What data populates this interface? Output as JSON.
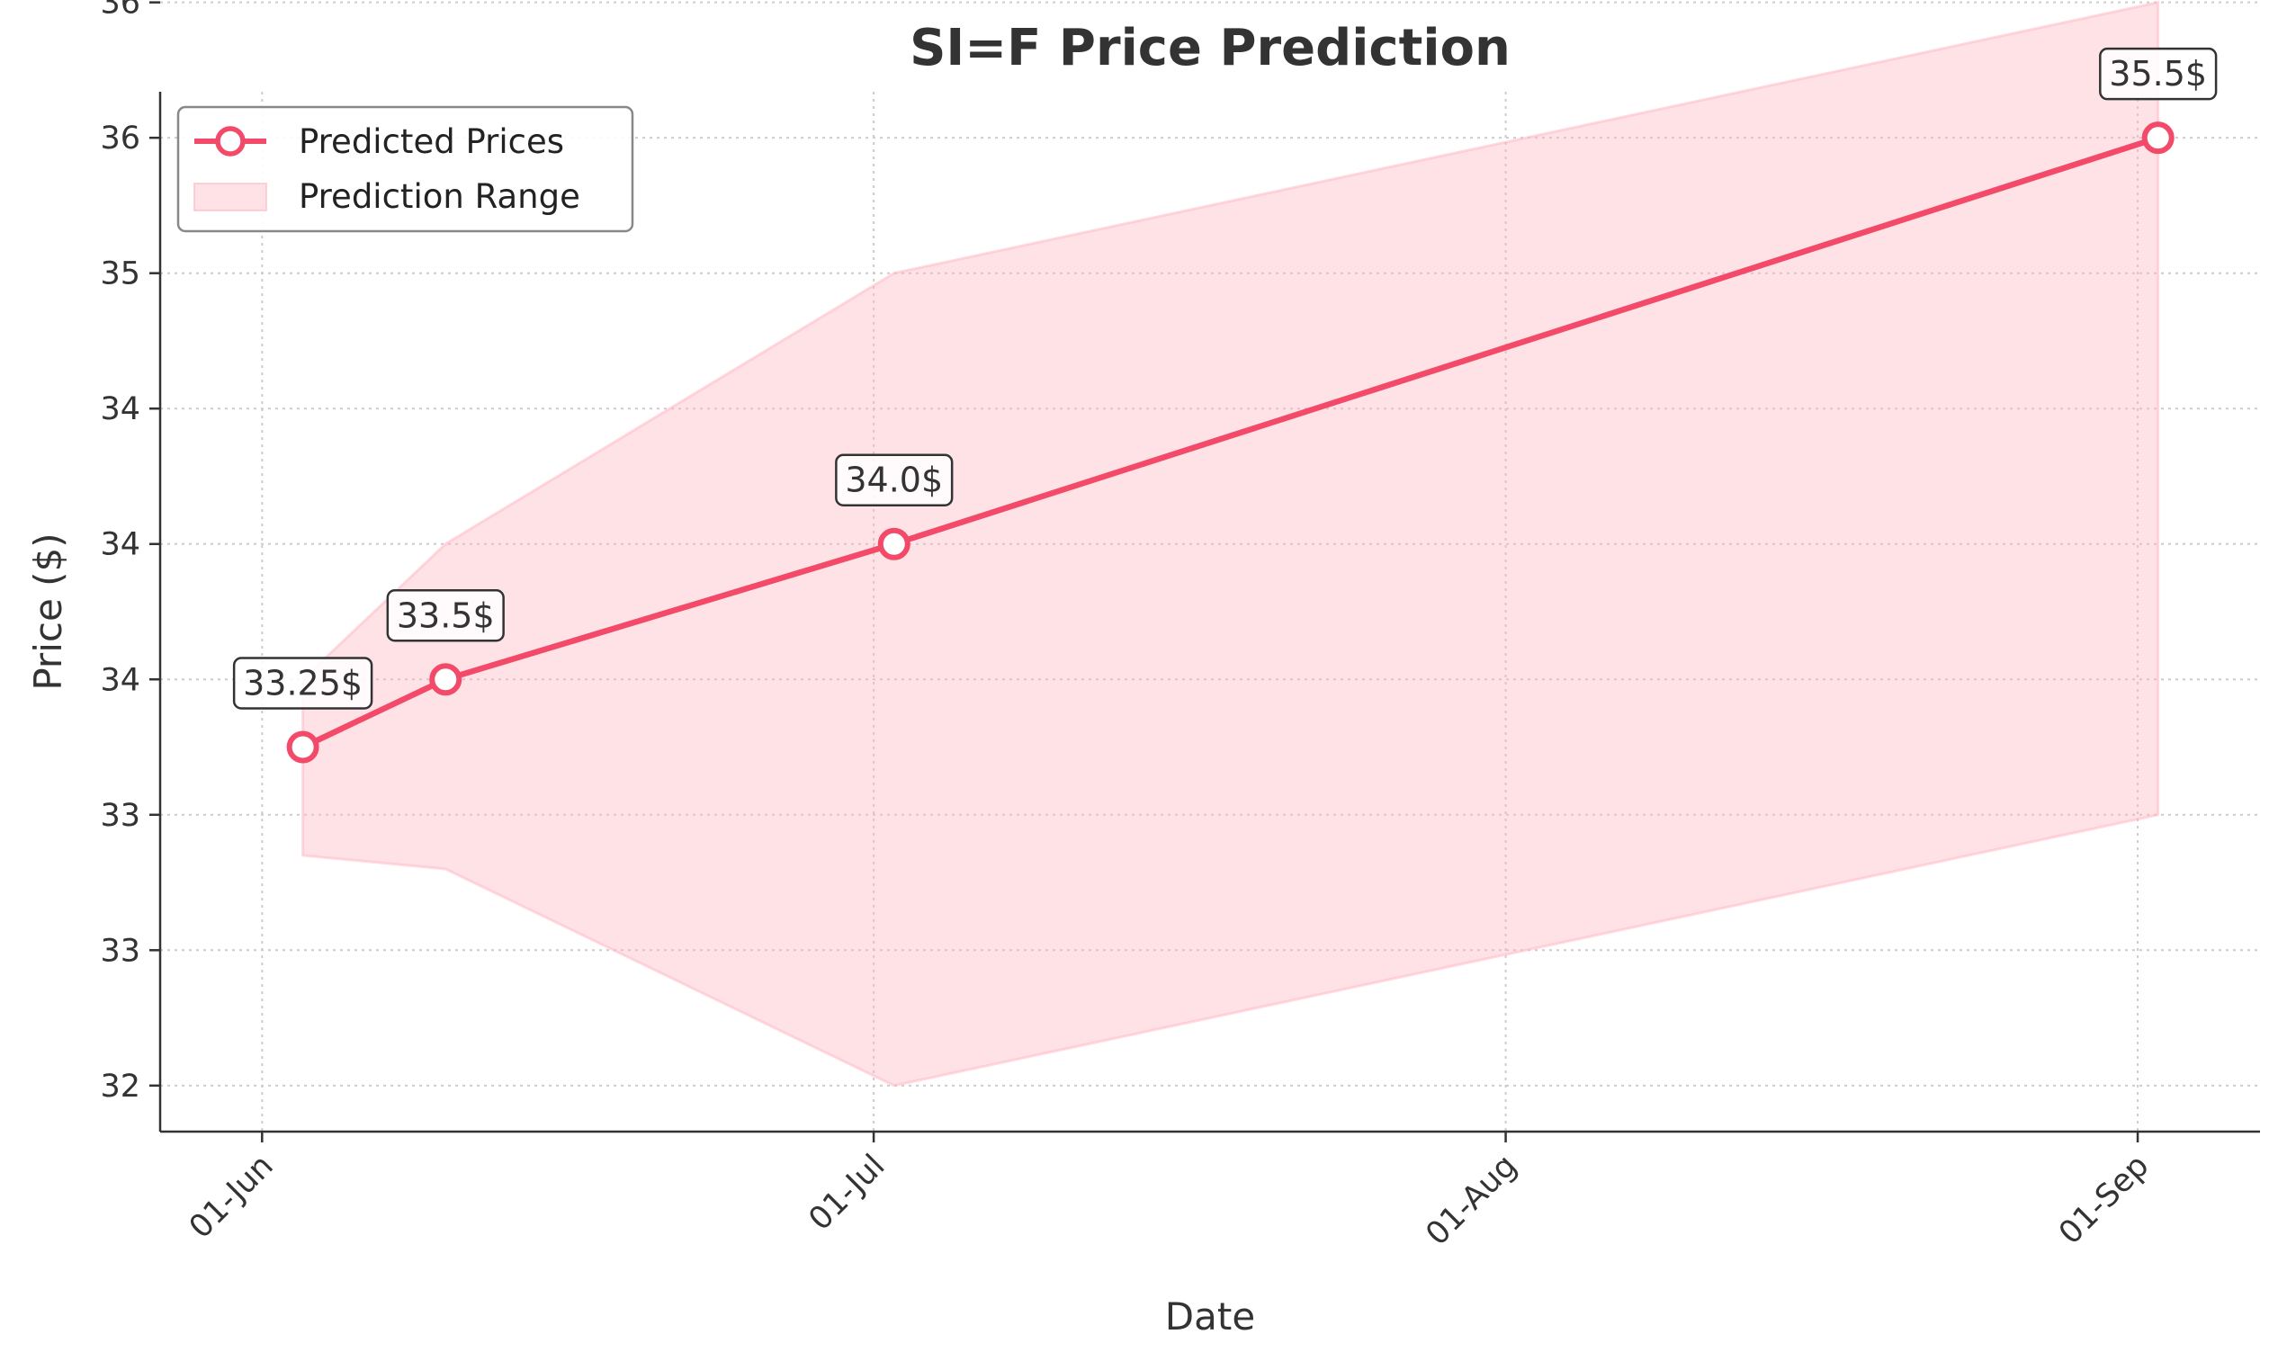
{
  "chart_data": {
    "type": "line",
    "title": "SI=F Price Prediction",
    "xlabel": "Date",
    "ylabel": "Price ($)",
    "x_ticks": [
      {
        "date": "2025-06-01",
        "label": "01-Jun"
      },
      {
        "date": "2025-07-01",
        "label": "01-Jul"
      },
      {
        "date": "2025-08-01",
        "label": "01-Aug"
      },
      {
        "date": "2025-09-01",
        "label": "01-Sep"
      }
    ],
    "y_ticks": [
      {
        "value": 32.0,
        "label": "32"
      },
      {
        "value": 32.5,
        "label": "33"
      },
      {
        "value": 33.0,
        "label": "33"
      },
      {
        "value": 33.5,
        "label": "34"
      },
      {
        "value": 34.0,
        "label": "34"
      },
      {
        "value": 34.5,
        "label": "34"
      },
      {
        "value": 35.0,
        "label": "35"
      },
      {
        "value": 35.5,
        "label": "36"
      },
      {
        "value": 36.0,
        "label": "36"
      }
    ],
    "xlim": [
      "2025-05-27",
      "2025-09-07"
    ],
    "ylim": [
      31.83,
      35.67
    ],
    "grid": true,
    "legend_position": "top-left",
    "series": [
      {
        "name": "Predicted Prices",
        "color": "#f24a68",
        "marker": "hollow-circle",
        "points": [
          {
            "x": "2025-06-03",
            "y": 33.25,
            "label": "33.25$"
          },
          {
            "x": "2025-06-10",
            "y": 33.5,
            "label": "33.5$"
          },
          {
            "x": "2025-07-02",
            "y": 34.0,
            "label": "34.0$"
          },
          {
            "x": "2025-09-02",
            "y": 35.5,
            "label": "35.5$"
          }
        ]
      },
      {
        "name": "Prediction Range",
        "color": "#ffb6c1",
        "type": "band",
        "points": [
          {
            "x": "2025-06-03",
            "low": 32.85,
            "high": 33.5
          },
          {
            "x": "2025-06-10",
            "low": 32.8,
            "high": 34.0
          },
          {
            "x": "2025-07-02",
            "low": 32.0,
            "high": 35.0
          },
          {
            "x": "2025-09-02",
            "low": 33.0,
            "high": 36.0
          }
        ]
      }
    ]
  }
}
